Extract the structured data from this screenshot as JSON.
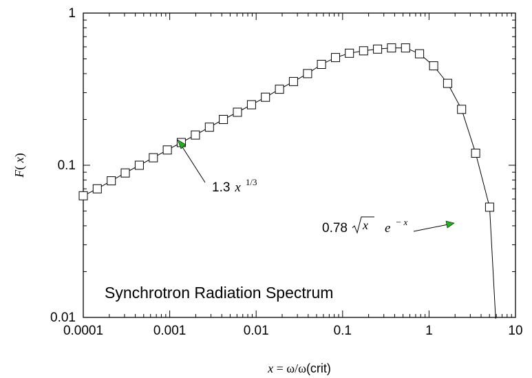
{
  "chart_data": {
    "type": "line",
    "title": "Synchrotron Radiation Spectrum",
    "xlabel": {
      "var": "x",
      "eq": " = ω/ω",
      "tail": "(crit)"
    },
    "ylabel": {
      "var": "F",
      "open": "( ",
      "arg": "x",
      "close": ")"
    },
    "xscale": "log",
    "yscale": "log",
    "xlim": [
      0.0001,
      10
    ],
    "ylim": [
      0.01,
      1
    ],
    "x_ticks": [
      "0.0001",
      "0.001",
      "0.01",
      "0.1",
      "1",
      "10"
    ],
    "y_ticks": [
      "0.01",
      "0.1",
      "1"
    ],
    "grid": false,
    "marker": "open-square",
    "series": [
      {
        "x": [
          0.0001,
          0.000145,
          0.000211,
          0.000306,
          0.000445,
          0.000646,
          0.000938,
          0.00136,
          0.00198,
          0.00288,
          0.00418,
          0.00607,
          0.00882,
          0.0128,
          0.0186,
          0.027,
          0.0393,
          0.057,
          0.0828,
          0.12,
          0.175,
          0.254,
          0.368,
          0.535,
          0.777,
          1.13,
          1.64,
          2.38,
          3.46,
          5.02
        ],
        "y": [
          0.063,
          0.07,
          0.079,
          0.089,
          0.1,
          0.112,
          0.126,
          0.141,
          0.158,
          0.178,
          0.2,
          0.223,
          0.25,
          0.28,
          0.316,
          0.355,
          0.4,
          0.46,
          0.51,
          0.545,
          0.565,
          0.58,
          0.59,
          0.59,
          0.54,
          0.45,
          0.345,
          0.233,
          0.12,
          0.053
        ]
      }
    ],
    "annotations": [
      {
        "coef": "1.3",
        "var": "x",
        "exp": "1/3",
        "arrow_to": [
          0.00116,
          0.14
        ]
      },
      {
        "coef": "0.78",
        "root": "x",
        "e": "e",
        "exp": "− x",
        "arrow_to": [
          3.1,
          0.043
        ]
      }
    ]
  }
}
